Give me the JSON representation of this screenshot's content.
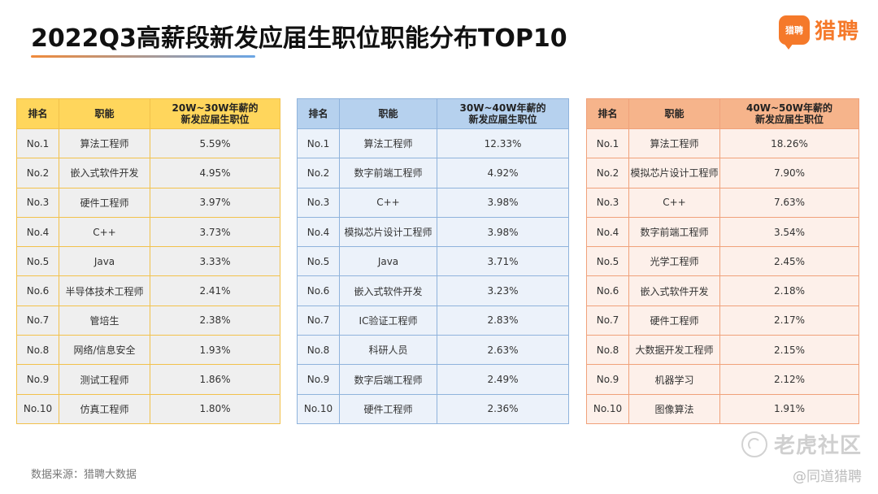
{
  "title": "2022Q3高薪段新发应届生职位职能分布TOP10",
  "logo": {
    "badge": "猎聘",
    "text": "猎聘"
  },
  "tables": [
    {
      "headers": [
        "排名",
        "职能",
        "20W~30W年薪的",
        "新发应届生职位"
      ],
      "rows": [
        [
          "No.1",
          "算法工程师",
          "5.59%"
        ],
        [
          "No.2",
          "嵌入式软件开发",
          "4.95%"
        ],
        [
          "No.3",
          "硬件工程师",
          "3.97%"
        ],
        [
          "No.4",
          "C++",
          "3.73%"
        ],
        [
          "No.5",
          "Java",
          "3.33%"
        ],
        [
          "No.6",
          "半导体技术工程师",
          "2.41%"
        ],
        [
          "No.7",
          "管培生",
          "2.38%"
        ],
        [
          "No.8",
          "网络/信息安全",
          "1.93%"
        ],
        [
          "No.9",
          "测试工程师",
          "1.86%"
        ],
        [
          "No.10",
          "仿真工程师",
          "1.80%"
        ]
      ]
    },
    {
      "headers": [
        "排名",
        "职能",
        "30W~40W年薪的",
        "新发应届生职位"
      ],
      "rows": [
        [
          "No.1",
          "算法工程师",
          "12.33%"
        ],
        [
          "No.2",
          "数字前端工程师",
          "4.92%"
        ],
        [
          "No.3",
          "C++",
          "3.98%"
        ],
        [
          "No.4",
          "模拟芯片设计工程师",
          "3.98%"
        ],
        [
          "No.5",
          "Java",
          "3.71%"
        ],
        [
          "No.6",
          "嵌入式软件开发",
          "3.23%"
        ],
        [
          "No.7",
          "IC验证工程师",
          "2.83%"
        ],
        [
          "No.8",
          "科研人员",
          "2.63%"
        ],
        [
          "No.9",
          "数字后端工程师",
          "2.49%"
        ],
        [
          "No.10",
          "硬件工程师",
          "2.36%"
        ]
      ]
    },
    {
      "headers": [
        "排名",
        "职能",
        "40W~50W年薪的",
        "新发应届生职位"
      ],
      "rows": [
        [
          "No.1",
          "算法工程师",
          "18.26%"
        ],
        [
          "No.2",
          "模拟芯片设计工程师",
          "7.90%"
        ],
        [
          "No.3",
          "C++",
          "7.63%"
        ],
        [
          "No.4",
          "数字前端工程师",
          "3.54%"
        ],
        [
          "No.5",
          "光学工程师",
          "2.45%"
        ],
        [
          "No.6",
          "嵌入式软件开发",
          "2.18%"
        ],
        [
          "No.7",
          "硬件工程师",
          "2.17%"
        ],
        [
          "No.8",
          "大数据开发工程师",
          "2.15%"
        ],
        [
          "No.9",
          "机器学习",
          "2.12%"
        ],
        [
          "No.10",
          "图像算法",
          "1.91%"
        ]
      ]
    }
  ],
  "source": "数据来源：猎聘大数据",
  "watermark": {
    "main": "老虎社区",
    "sub": "@同道猎聘"
  },
  "colors": {
    "accent": "#f5792a",
    "table1_header": "#ffd65c",
    "table2_header": "#b6d1ee",
    "table3_header": "#f6b48b"
  }
}
